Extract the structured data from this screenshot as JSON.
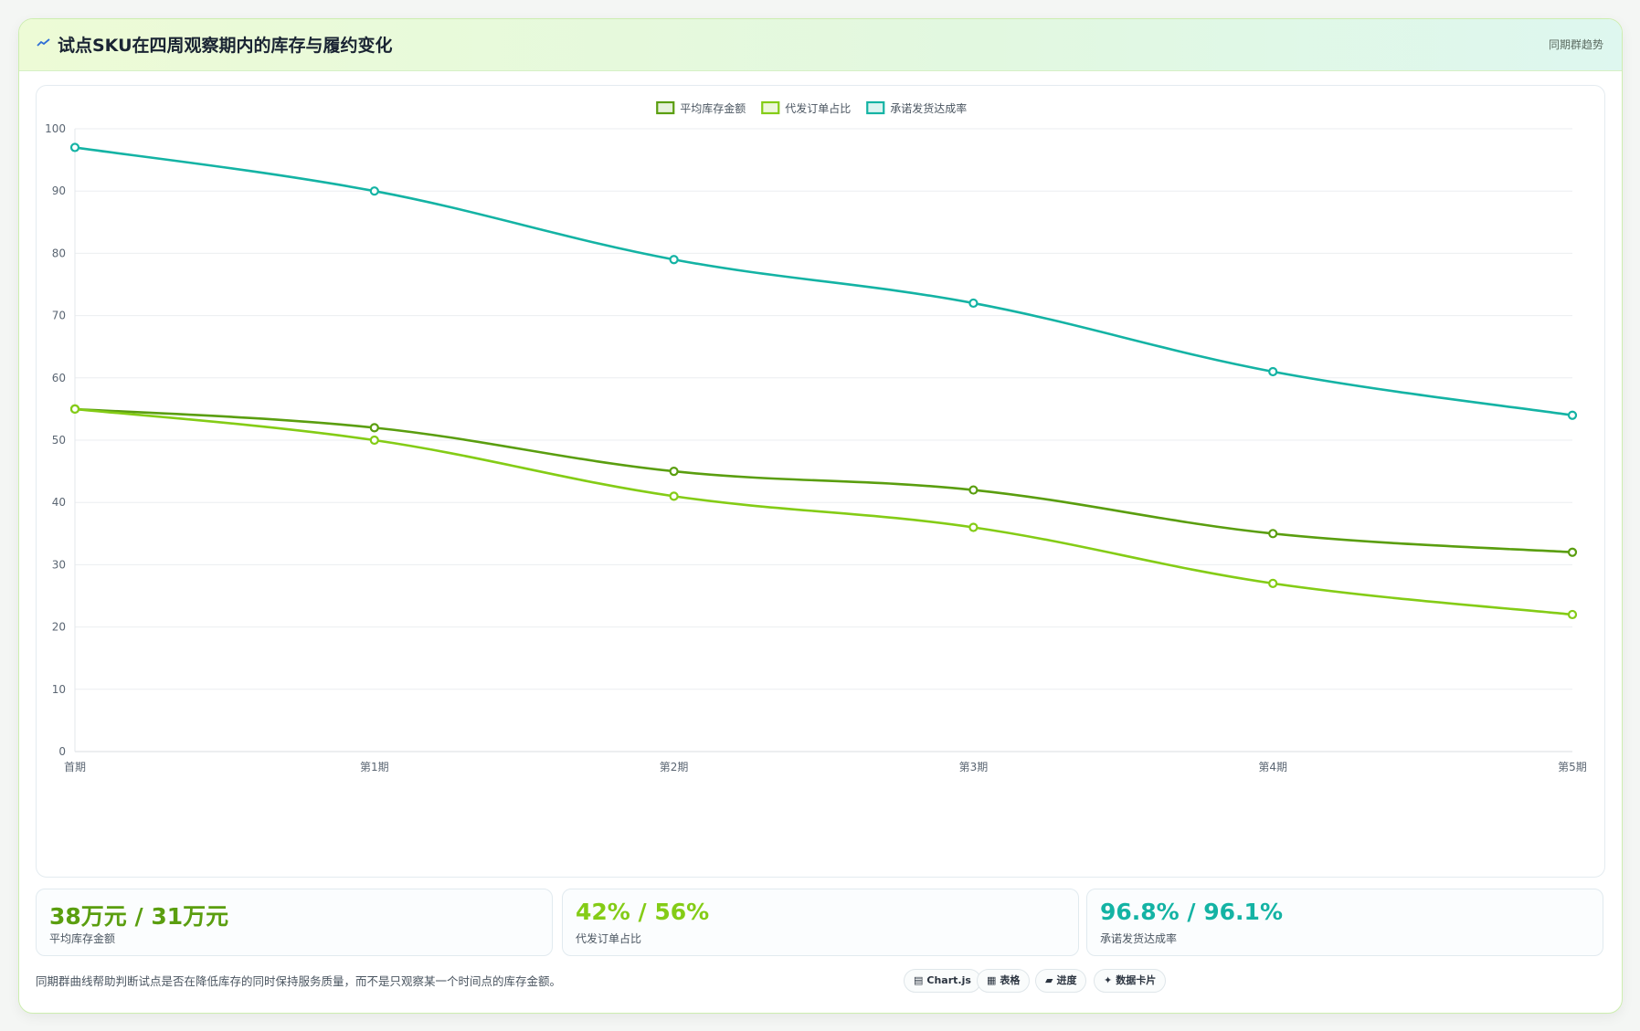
{
  "header": {
    "title": "试点SKU在四周观察期内的库存与履约变化",
    "tag": "同期群趋势",
    "icon": "trend-icon"
  },
  "chart_data": {
    "type": "line",
    "categories": [
      "首期",
      "第1期",
      "第2期",
      "第3期",
      "第4期",
      "第5期"
    ],
    "series": [
      {
        "name": "平均库存金额",
        "values": [
          55,
          52,
          45,
          42,
          35,
          32
        ],
        "color": "#5a9e0f"
      },
      {
        "name": "代发订单占比",
        "values": [
          55,
          50,
          41,
          36,
          27,
          22
        ],
        "color": "#84cc16"
      },
      {
        "name": "承诺发货达成率",
        "values": [
          97,
          90,
          79,
          72,
          61,
          54
        ],
        "color": "#14b3a4"
      }
    ],
    "ylim": [
      0,
      100
    ],
    "yticks": [
      0,
      10,
      20,
      30,
      40,
      50,
      60,
      70,
      80,
      90,
      100
    ],
    "grid": true,
    "legend": "top-center"
  },
  "stats": [
    {
      "value": "38万元 / 31万元",
      "label": "平均库存金额",
      "color": "#5a9e0f"
    },
    {
      "value": "42% / 56%",
      "label": "代发订单占比",
      "color": "#84cc16"
    },
    {
      "value": "96.8% / 96.1%",
      "label": "承诺发货达成率",
      "color": "#14b3a4"
    }
  ],
  "footer": {
    "note": "同期群曲线帮助判断试点是否在降低库存的同时保持服务质量，而不是只观察某一个时间点的库存金额。",
    "pills": [
      {
        "icon": "chart-icon",
        "glyph": "▤",
        "label": "Chart.js"
      },
      {
        "icon": "table-icon",
        "glyph": "▦",
        "label": "表格"
      },
      {
        "icon": "progress-icon",
        "glyph": "▰",
        "label": "进度"
      },
      {
        "icon": "card-icon",
        "glyph": "✦",
        "label": "数据卡片"
      }
    ]
  }
}
